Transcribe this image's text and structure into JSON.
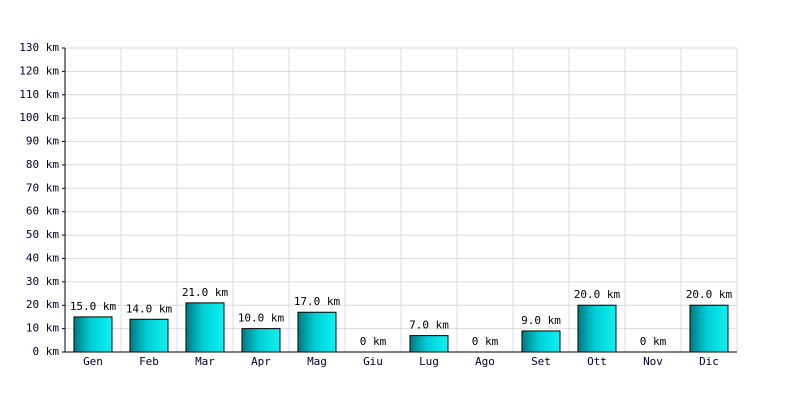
{
  "chart_data": {
    "type": "bar",
    "categories": [
      "Gen",
      "Feb",
      "Mar",
      "Apr",
      "Mag",
      "Giu",
      "Lug",
      "Ago",
      "Set",
      "Ott",
      "Nov",
      "Dic"
    ],
    "values": [
      15,
      14,
      21,
      10,
      17,
      0,
      7,
      0,
      9,
      20,
      0,
      20
    ],
    "value_labels": [
      "15.0 km",
      "14.0 km",
      "21.0 km",
      "10.0 km",
      "17.0 km",
      "0 km",
      "7.0 km",
      "0 km",
      "9.0 km",
      "20.0 km",
      "0 km",
      "20.0 km"
    ],
    "color": "#00c8d0",
    "ylim": [
      0,
      130
    ],
    "yticks": [
      {
        "value": 0,
        "label": "0 km"
      },
      {
        "value": 10,
        "label": "10 km"
      },
      {
        "value": 20,
        "label": "20 km"
      },
      {
        "value": 30,
        "label": "30 km"
      },
      {
        "value": 40,
        "label": "40 km"
      },
      {
        "value": 50,
        "label": "50 km"
      },
      {
        "value": 60,
        "label": "60 km"
      },
      {
        "value": 70,
        "label": "70 km"
      },
      {
        "value": 80,
        "label": "80 km"
      },
      {
        "value": 90,
        "label": "90 km"
      },
      {
        "value": 100,
        "label": "100 km"
      },
      {
        "value": 110,
        "label": "110 km"
      },
      {
        "value": 120,
        "label": "120 km"
      },
      {
        "value": 130,
        "label": "130 km"
      }
    ],
    "grid": true
  }
}
